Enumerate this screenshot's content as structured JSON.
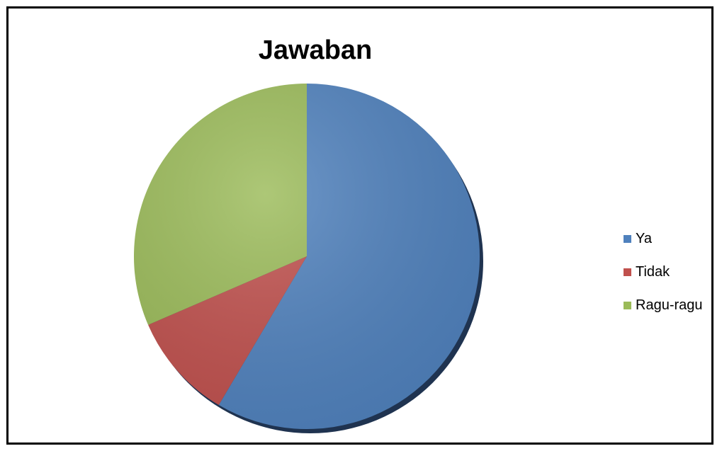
{
  "chart_data": {
    "type": "pie",
    "title": "Jawaban",
    "categories": [
      "Ya",
      "Tidak",
      "Ragu-ragu"
    ],
    "values": [
      58.5,
      10.0,
      31.5
    ],
    "unit": "percent (estimated)",
    "colors": [
      "#4F81BD",
      "#C0504D",
      "#9BBB59"
    ],
    "start_angle": "12 o'clock, clockwise",
    "legend_position": "right",
    "style": "3d-shadow"
  }
}
